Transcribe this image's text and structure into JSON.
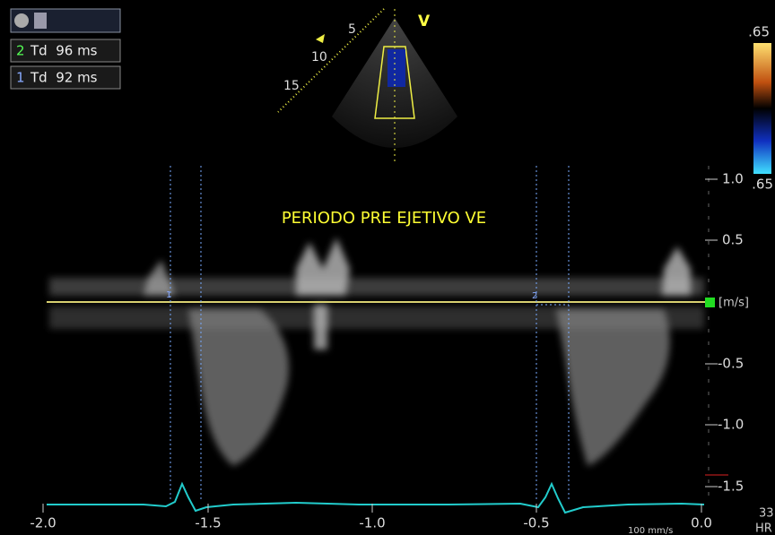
{
  "measurements": [
    {
      "index": "2",
      "text": "Td  96 ms"
    },
    {
      "index": "1",
      "text": "Td  92 ms"
    }
  ],
  "sector": {
    "view_label": "V",
    "depth_labels": [
      "5",
      "10",
      "15"
    ]
  },
  "color_scale": {
    "top": ".65",
    "bottom": ".65"
  },
  "annotation": "PERIODO PRE EJETIVO VE",
  "velocity_scale": {
    "labels": [
      "1.0",
      "0.5",
      "-0.5",
      "-1.0",
      "-1.5"
    ],
    "unit": "[m/s]"
  },
  "time_scale": {
    "labels": [
      "-2.0",
      "-1.5",
      "-1.0",
      "-0.5",
      "0.0"
    ],
    "sweep": "100 mm/s"
  },
  "markers": [
    "1",
    "2"
  ],
  "heart_rate": {
    "value": "33",
    "label": "HR"
  }
}
